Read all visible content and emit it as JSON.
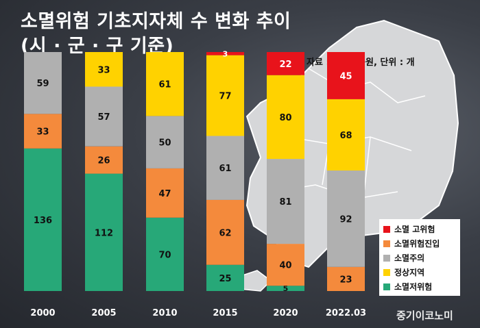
{
  "title_line1": "소멸위험 기초지자체 수 변화 추이",
  "title_line2": "(시 · 군 · 구 기준)",
  "source_note": "자료 : 경기연구원, 단위 : 개",
  "brand": "중기이코노미",
  "colors": {
    "소멸 고위험": "#e8131b",
    "소멸위험진입": "#f48a3c",
    "소멸주의": "#b0b0b0",
    "정상지역": "#ffd200",
    "소멸저위험": "#27a878"
  },
  "legend": [
    {
      "label": "소멸 고위험",
      "color": "#e8131b"
    },
    {
      "label": "소멸위험진입",
      "color": "#f48a3c"
    },
    {
      "label": "소멸주의",
      "color": "#b0b0b0"
    },
    {
      "label": "정상지역",
      "color": "#ffd200"
    },
    {
      "label": "소멸저위험",
      "color": "#27a878"
    }
  ],
  "chart_data": {
    "type": "bar",
    "stacked": true,
    "categories": [
      "2000",
      "2005",
      "2010",
      "2015",
      "2020",
      "2022.03"
    ],
    "series": [
      {
        "name": "소멸저위험",
        "values": [
          136,
          112,
          70,
          25,
          5,
          0
        ]
      },
      {
        "name": "소멸위험진입",
        "values": [
          33,
          26,
          47,
          62,
          40,
          23
        ]
      },
      {
        "name": "소멸주의",
        "values": [
          59,
          57,
          50,
          61,
          81,
          92
        ]
      },
      {
        "name": "정상지역",
        "values": [
          0,
          33,
          61,
          77,
          80,
          68
        ]
      },
      {
        "name": "소멸 고위험",
        "values": [
          0,
          0,
          0,
          3,
          22,
          45
        ]
      }
    ],
    "legend_position": "bottom-right",
    "grid": false
  }
}
